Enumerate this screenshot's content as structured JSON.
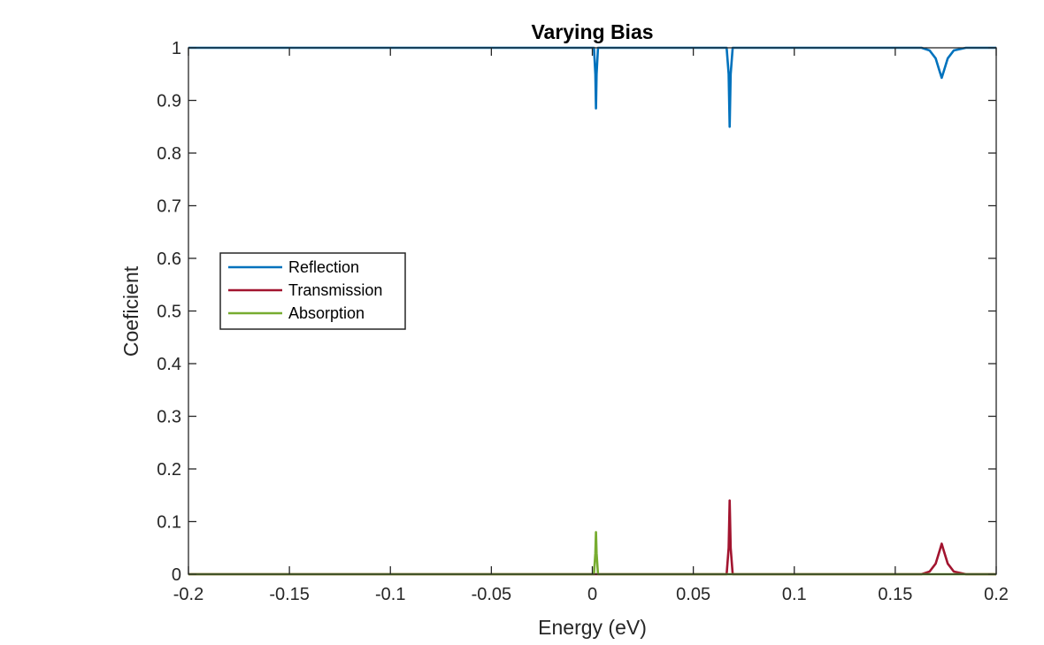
{
  "chart_data": {
    "type": "line",
    "title": "Varying Bias",
    "xlabel": "Energy (eV)",
    "ylabel": "Coeficient",
    "xlim": [
      -0.2,
      0.2
    ],
    "ylim": [
      0,
      1
    ],
    "xticks": [
      -0.2,
      -0.15,
      -0.1,
      -0.05,
      0,
      0.05,
      0.1,
      0.15,
      0.2
    ],
    "xtick_labels": [
      "-0.2",
      "-0.15",
      "-0.1",
      "-0.05",
      "0",
      "0.05",
      "0.1",
      "0.15",
      "0.2"
    ],
    "yticks": [
      0,
      0.1,
      0.2,
      0.3,
      0.4,
      0.5,
      0.6,
      0.7,
      0.8,
      0.9,
      1
    ],
    "ytick_labels": [
      "0",
      "0.1",
      "0.2",
      "0.3",
      "0.4",
      "0.5",
      "0.6",
      "0.7",
      "0.8",
      "0.9",
      "1"
    ],
    "grid": false,
    "legend_position": "middle-left",
    "series": [
      {
        "name": "Reflection",
        "color": "#0072BD",
        "points": [
          [
            -0.2,
            1.0
          ],
          [
            0.0008,
            1.0
          ],
          [
            0.0015,
            0.95
          ],
          [
            0.0018,
            0.885
          ],
          [
            0.0021,
            0.95
          ],
          [
            0.0028,
            1.0
          ],
          [
            0.0665,
            1.0
          ],
          [
            0.0675,
            0.95
          ],
          [
            0.068,
            0.85
          ],
          [
            0.0685,
            0.95
          ],
          [
            0.0695,
            1.0
          ],
          [
            0.163,
            1.0
          ],
          [
            0.167,
            0.995
          ],
          [
            0.17,
            0.98
          ],
          [
            0.172,
            0.955
          ],
          [
            0.173,
            0.943
          ],
          [
            0.174,
            0.955
          ],
          [
            0.176,
            0.98
          ],
          [
            0.179,
            0.995
          ],
          [
            0.185,
            1.0
          ],
          [
            0.2,
            1.0
          ]
        ]
      },
      {
        "name": "Transmission",
        "color": "#A2142F",
        "points": [
          [
            -0.2,
            0.0
          ],
          [
            0.0665,
            0.0
          ],
          [
            0.0675,
            0.05
          ],
          [
            0.068,
            0.14
          ],
          [
            0.0685,
            0.05
          ],
          [
            0.0695,
            0.0
          ],
          [
            0.163,
            0.0
          ],
          [
            0.167,
            0.005
          ],
          [
            0.17,
            0.02
          ],
          [
            0.172,
            0.045
          ],
          [
            0.173,
            0.058
          ],
          [
            0.174,
            0.045
          ],
          [
            0.176,
            0.02
          ],
          [
            0.179,
            0.005
          ],
          [
            0.185,
            0.0
          ],
          [
            0.2,
            0.0
          ]
        ]
      },
      {
        "name": "Absorption",
        "color": "#77AC30",
        "points": [
          [
            -0.2,
            0.0
          ],
          [
            0.0008,
            0.0
          ],
          [
            0.0015,
            0.04
          ],
          [
            0.0018,
            0.08
          ],
          [
            0.0021,
            0.04
          ],
          [
            0.0028,
            0.0
          ],
          [
            0.2,
            0.0
          ]
        ]
      }
    ]
  }
}
